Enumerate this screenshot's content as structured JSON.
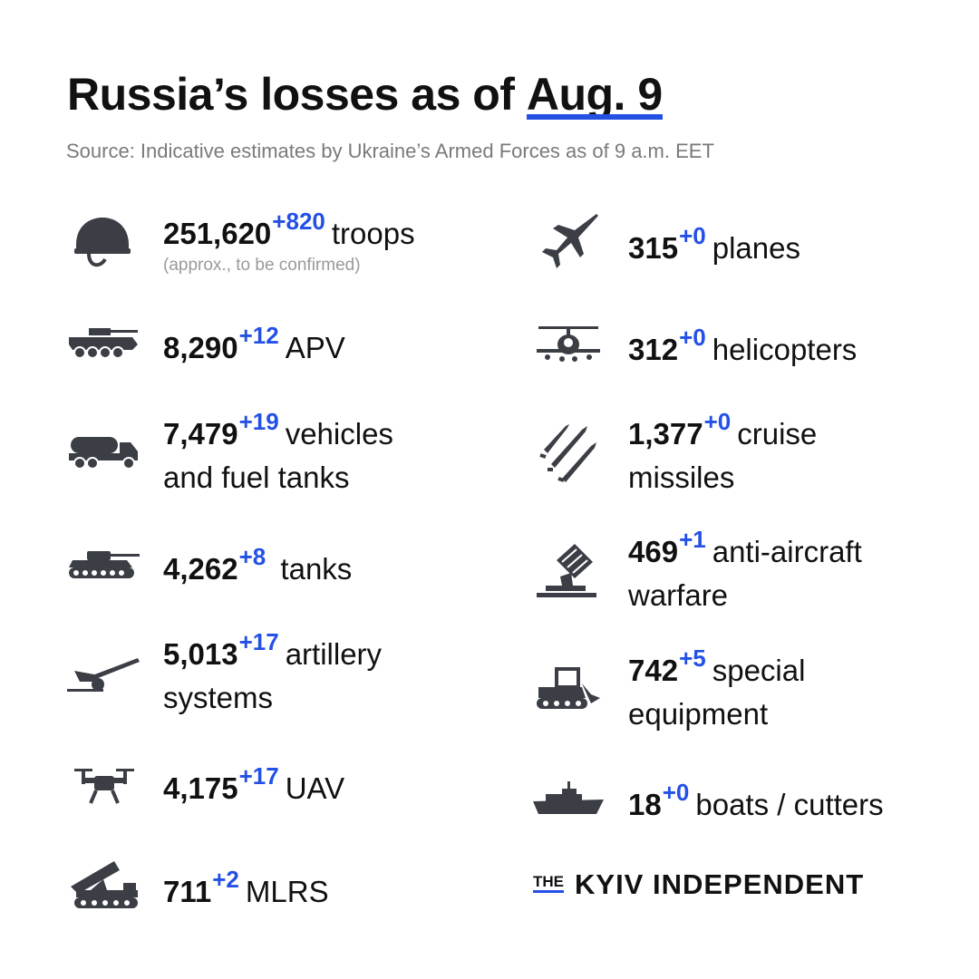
{
  "title": {
    "prefix": "Russia’s losses  as of ",
    "date": "Aug. 9"
  },
  "source": "Source: Indicative estimates by Ukraine’s Armed Forces as of 9 a.m. EET",
  "accent_color": "#2450e6",
  "items": [
    {
      "icon": "helmet-icon",
      "value": "251,620",
      "delta": "+820",
      "label": "troops",
      "note": "(approx., to be confirmed)"
    },
    {
      "icon": "apv-icon",
      "value": "8,290",
      "delta": "+12",
      "label": "APV"
    },
    {
      "icon": "fuel-truck-icon",
      "value": "7,479",
      "delta": "+19",
      "label": "vehicles",
      "label2": "and fuel tanks"
    },
    {
      "icon": "tank-icon",
      "value": "4,262",
      "delta": "+8",
      "label": " tanks"
    },
    {
      "icon": "artillery-icon",
      "value": "5,013",
      "delta": "+17",
      "label": "artillery",
      "label2": "systems"
    },
    {
      "icon": "drone-icon",
      "value": "4,175",
      "delta": "+17",
      "label": "UAV"
    },
    {
      "icon": "mlrs-icon",
      "value": "711",
      "delta": "+2",
      "label": "MLRS"
    },
    {
      "icon": "plane-icon",
      "value": "315",
      "delta": "+0",
      "label": "planes"
    },
    {
      "icon": "helicopter-icon",
      "value": "312",
      "delta": "+0",
      "label": "helicopters"
    },
    {
      "icon": "missiles-icon",
      "value": "1,377",
      "delta": "+0",
      "label": "cruise",
      "label2": "missiles"
    },
    {
      "icon": "anti-aircraft-icon",
      "value": "469",
      "delta": "+1",
      "label": "anti-aircraft",
      "label2": "warfare"
    },
    {
      "icon": "bulldozer-icon",
      "value": "742",
      "delta": "+5",
      "label": "special",
      "label2": "equipment"
    },
    {
      "icon": "boat-icon",
      "value": "18",
      "delta": "+0",
      "label": "boats / cutters"
    }
  ],
  "brand": {
    "the": "THE",
    "name": "KYIV INDEPENDENT"
  }
}
